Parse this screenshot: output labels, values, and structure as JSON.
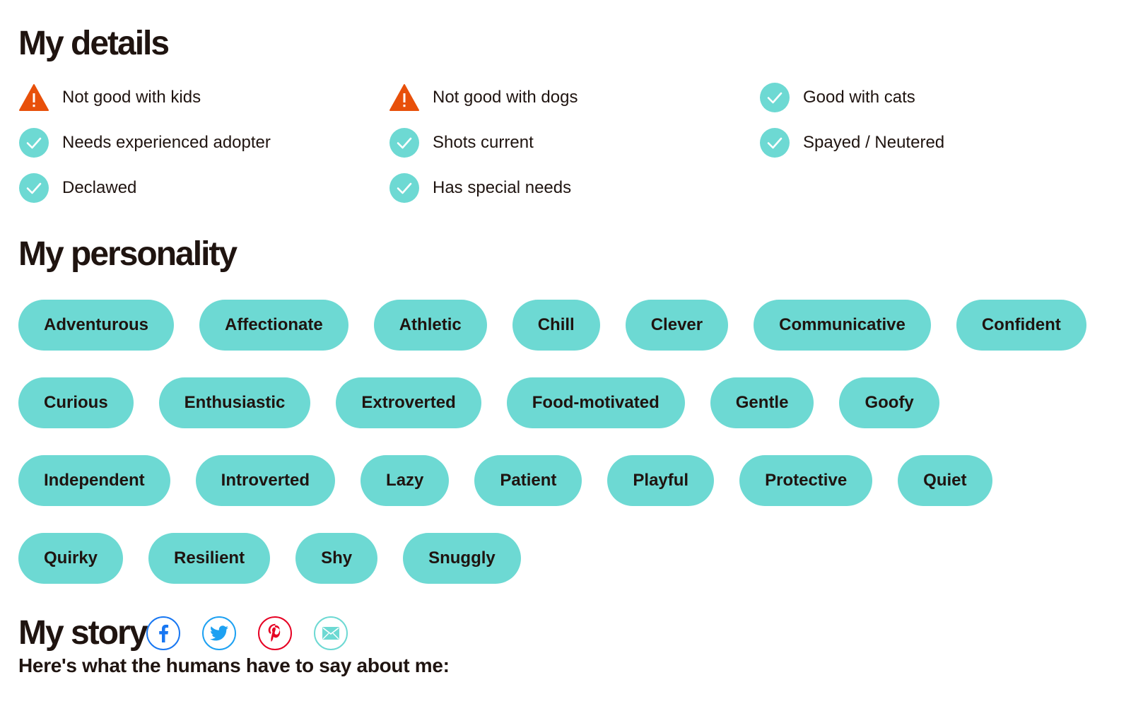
{
  "colors": {
    "text": "#1f1410",
    "accent": "#6dd9d3",
    "warning": "#e8500a",
    "facebook": "#1877f2",
    "twitter": "#1da1f2",
    "pinterest": "#e60023",
    "email": "#6dd9d3"
  },
  "details": {
    "title": "My details",
    "items": [
      {
        "label": "Not good with kids",
        "icon": "warning-icon"
      },
      {
        "label": "Not good with dogs",
        "icon": "warning-icon"
      },
      {
        "label": "Good with cats",
        "icon": "check-icon"
      },
      {
        "label": "Needs experienced adopter",
        "icon": "check-icon"
      },
      {
        "label": "Shots current",
        "icon": "check-icon"
      },
      {
        "label": "Spayed / Neutered",
        "icon": "check-icon"
      },
      {
        "label": "Declawed",
        "icon": "check-icon"
      },
      {
        "label": "Has special needs",
        "icon": "check-icon"
      }
    ]
  },
  "personality": {
    "title": "My personality",
    "tags": [
      [
        "Adventurous",
        "Affectionate",
        "Athletic",
        "Chill",
        "Clever",
        "Communicative",
        "Confident"
      ],
      [
        "Curious",
        "Enthusiastic",
        "Extroverted",
        "Food-motivated",
        "Gentle",
        "Goofy"
      ],
      [
        "Independent",
        "Introverted",
        "Lazy",
        "Patient",
        "Playful",
        "Protective",
        "Quiet"
      ],
      [
        "Quirky",
        "Resilient",
        "Shy",
        "Snuggly"
      ]
    ]
  },
  "story": {
    "title": "My story",
    "share_icons": [
      "facebook-icon",
      "twitter-icon",
      "pinterest-icon",
      "email-icon"
    ],
    "subtitle": "Here's what the humans have to say about me:"
  }
}
